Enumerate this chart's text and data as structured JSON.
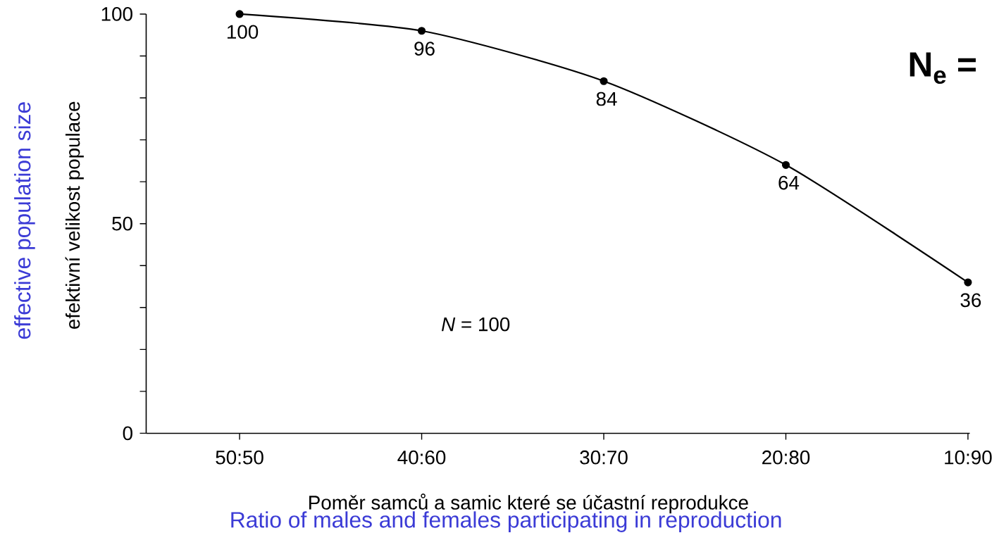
{
  "chart_data": {
    "type": "line",
    "xlabel": "Poměr samců a samic které se účastní reprodukce",
    "ylabel": "efektivní velikost populace",
    "categories": [
      "50:50",
      "40:60",
      "30:70",
      "20:80",
      "10:90"
    ],
    "series": [
      {
        "color": "#000000",
        "values": [
          100,
          96,
          84,
          64,
          36
        ]
      }
    ],
    "ylim": [
      0,
      100
    ],
    "yticks": [
      0,
      {
        "value": 10,
        "label": null
      },
      {
        "value": 20,
        "label": null
      },
      {
        "value": 30,
        "label": null
      },
      {
        "value": 40,
        "label": null
      },
      50,
      {
        "value": 60,
        "label": null
      },
      {
        "value": 70,
        "label": null
      },
      {
        "value": 80,
        "label": null
      },
      {
        "value": 90,
        "label": null
      },
      100
    ],
    "data_labels": true,
    "marker": "circle",
    "line_style": "solid",
    "annotations": [
      "effective population size",
      "Ratio of males and females participating in reproduction",
      "*N* = 100",
      "N$_{e}$ ="
    ]
  }
}
